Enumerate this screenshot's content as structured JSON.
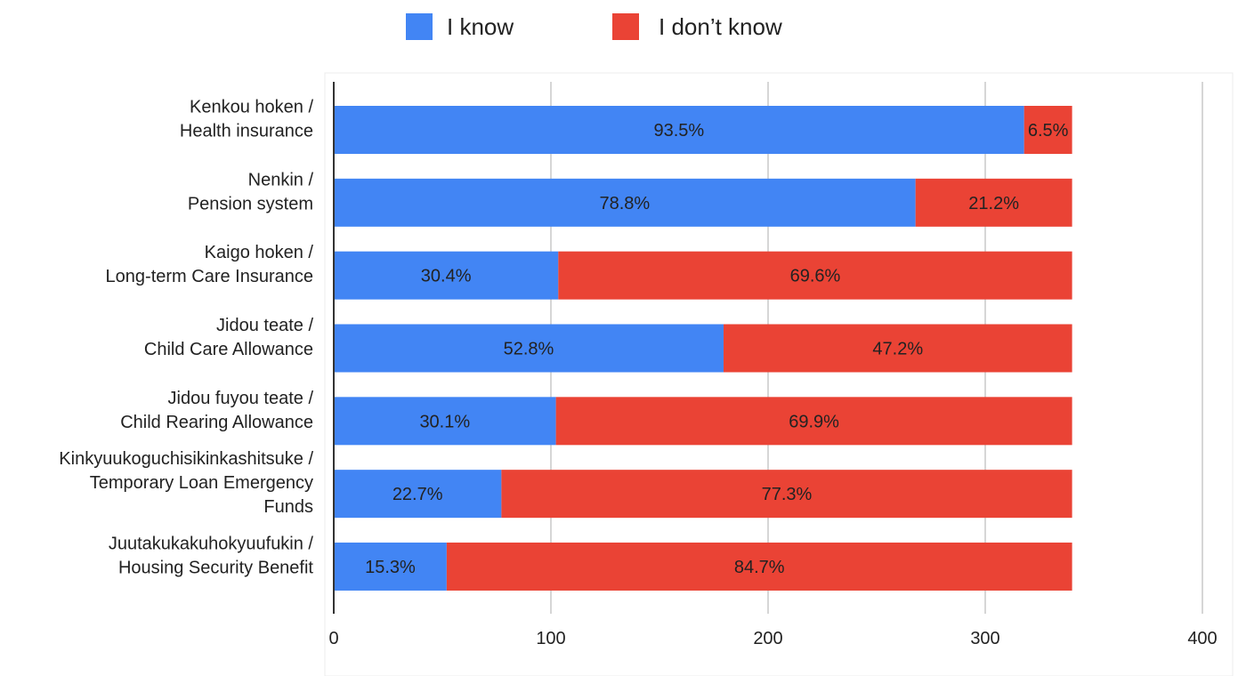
{
  "chart_data": {
    "type": "bar",
    "orientation": "horizontal",
    "stacked": true,
    "title": "",
    "xlabel": "",
    "ylabel": "",
    "xlim": [
      0,
      400
    ],
    "x_ticks": [
      0,
      100,
      200,
      300,
      400
    ],
    "grid": true,
    "legend_position": "top",
    "categories": [
      [
        "Kenkou hoken /",
        "Health insurance"
      ],
      [
        "Nenkin /",
        "Pension system"
      ],
      [
        "Kaigo hoken /",
        "Long-term Care Insurance"
      ],
      [
        "Jidou teate /",
        "Child Care Allowance"
      ],
      [
        "Jidou fuyou teate /",
        "Child Rearing Allowance"
      ],
      [
        "Kinkyuukoguchisikinkashitsuke /",
        "Temporary Loan Emergency",
        "Funds"
      ],
      [
        "Juutakukakuhokyuufukin /",
        "Housing Security Benefit"
      ]
    ],
    "series": [
      {
        "name": "I know",
        "color": "#4285F4",
        "values": [
          317.9,
          267.9,
          103.4,
          179.5,
          102.3,
          77.2,
          52.0
        ],
        "labels": [
          "93.5%",
          "78.8%",
          "30.4%",
          "52.8%",
          "30.1%",
          "22.7%",
          "15.3%"
        ]
      },
      {
        "name": "I don’t know",
        "color": "#EA4335",
        "values": [
          22.1,
          72.1,
          236.6,
          160.5,
          237.7,
          262.8,
          288.0
        ],
        "labels": [
          "6.5%",
          "21.2%",
          "69.6%",
          "47.2%",
          "69.9%",
          "77.3%",
          "84.7%"
        ]
      }
    ]
  }
}
